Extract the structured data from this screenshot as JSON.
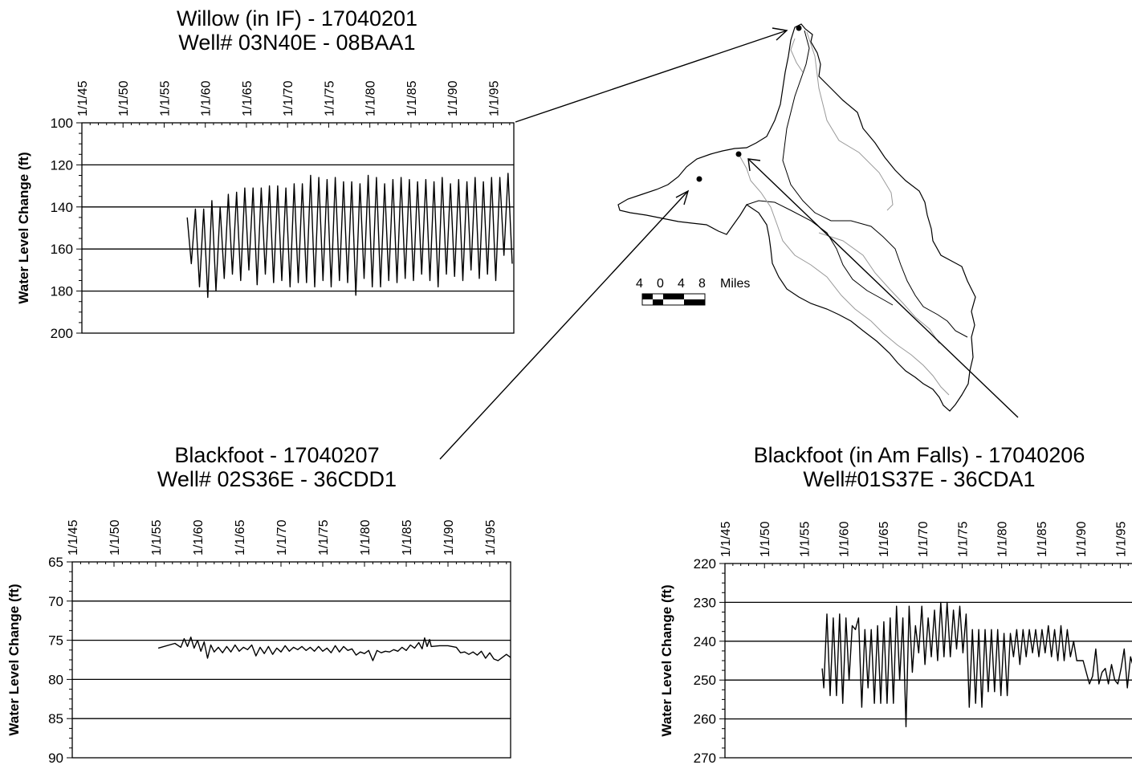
{
  "charts": [
    {
      "title": "Willow (in IF) - 17040201",
      "subtitle": "Well# 03N40E - 08BAA1"
    },
    {
      "title": "Blackfoot - 17040207",
      "subtitle": "Well# 02S36E - 36CDD1"
    },
    {
      "title": "Blackfoot (in Am Falls) - 17040206",
      "subtitle": "Well#01S37E - 36CDA1"
    }
  ],
  "map": {
    "scale_numbers": [
      "4",
      "0",
      "4",
      "8"
    ],
    "scale_units": "Miles"
  },
  "chart_data": [
    {
      "type": "line",
      "title": "Willow (in IF) - 17040201 / Well# 03N40E - 08BAA1",
      "xlabel": "",
      "ylabel": "Water Level Change (ft)",
      "x_tick_labels": [
        "1/1/45",
        "1/1/50",
        "1/1/55",
        "1/1/60",
        "1/1/65",
        "1/1/70",
        "1/1/75",
        "1/1/80",
        "1/1/85",
        "1/1/90",
        "1/1/95"
      ],
      "xlim": [
        1945,
        1997.5
      ],
      "ylim": [
        100,
        200
      ],
      "y_reversed": true,
      "y_ticks": [
        100,
        120,
        140,
        160,
        180,
        200
      ],
      "grid": "horizontal",
      "series": [
        {
          "x": [
            1957.8,
            1958.3,
            1958.8,
            1959.3,
            1959.8,
            1960.3,
            1960.8,
            1961.3,
            1961.8,
            1962.3,
            1962.8,
            1963.3,
            1963.8,
            1964.3,
            1964.8,
            1965.3,
            1965.8,
            1966.3,
            1966.8,
            1967.3,
            1967.8,
            1968.3,
            1968.8,
            1969.3,
            1969.8,
            1970.3,
            1970.8,
            1971.3,
            1971.8,
            1972.3,
            1972.8,
            1973.3,
            1973.8,
            1974.3,
            1974.8,
            1975.3,
            1975.8,
            1976.3,
            1976.8,
            1977.3,
            1977.8,
            1978.3,
            1978.8,
            1979.3,
            1979.8,
            1980.3,
            1980.8,
            1981.3,
            1981.8,
            1982.3,
            1982.8,
            1983.3,
            1983.8,
            1984.3,
            1984.8,
            1985.3,
            1985.8,
            1986.3,
            1986.8,
            1987.3,
            1987.8,
            1988.3,
            1988.8,
            1989.3,
            1989.8,
            1990.3,
            1990.8,
            1991.3,
            1991.8,
            1992.3,
            1992.8,
            1993.3,
            1993.8,
            1994.3,
            1994.8,
            1995.3,
            1995.8,
            1996.3,
            1996.8,
            1997.3
          ],
          "y": [
            145,
            167,
            141,
            178,
            141,
            183,
            137,
            180,
            140,
            174,
            134,
            172,
            133,
            175,
            131,
            170,
            131,
            177,
            131,
            172,
            130,
            176,
            130,
            175,
            131,
            178,
            129,
            176,
            129,
            176,
            125,
            178,
            126,
            175,
            127,
            178,
            126,
            175,
            128,
            176,
            128,
            182,
            129,
            174,
            125,
            178,
            126,
            178,
            129,
            175,
            127,
            176,
            126,
            174,
            127,
            175,
            128,
            172,
            127,
            175,
            128,
            178,
            126,
            172,
            129,
            173,
            127,
            175,
            128,
            170,
            126,
            174,
            128,
            172,
            126,
            175,
            126,
            163,
            124,
            167
          ]
        }
      ]
    },
    {
      "type": "line",
      "title": "Blackfoot - 17040207 / Well# 02S36E - 36CDD1",
      "xlabel": "",
      "ylabel": "Water Level Change (ft)",
      "x_tick_labels": [
        "1/1/45",
        "1/1/50",
        "1/1/55",
        "1/1/60",
        "1/1/65",
        "1/1/70",
        "1/1/75",
        "1/1/80",
        "1/1/85",
        "1/1/90",
        "1/1/95"
      ],
      "xlim": [
        1945,
        1997.5
      ],
      "ylim": [
        65,
        90
      ],
      "y_reversed": true,
      "y_ticks": [
        65,
        70,
        75,
        80,
        85,
        90
      ],
      "grid": "horizontal",
      "series": [
        {
          "x": [
            1955.3,
            1957.3,
            1958.0,
            1958.4,
            1958.8,
            1959.2,
            1959.6,
            1960.0,
            1960.4,
            1960.8,
            1961.2,
            1961.6,
            1962.0,
            1962.5,
            1963.0,
            1963.5,
            1964.0,
            1964.5,
            1965.0,
            1965.5,
            1966.0,
            1966.5,
            1967.0,
            1967.5,
            1968.0,
            1968.5,
            1969.0,
            1969.5,
            1970.0,
            1970.5,
            1971.0,
            1971.5,
            1972.0,
            1972.5,
            1973.0,
            1973.5,
            1974.0,
            1974.5,
            1975.0,
            1975.5,
            1976.0,
            1976.5,
            1977.0,
            1977.5,
            1978.0,
            1978.5,
            1979.0,
            1979.5,
            1980.0,
            1980.5,
            1981.0,
            1981.5,
            1982.0,
            1982.5,
            1983.0,
            1983.5,
            1984.0,
            1984.5,
            1985.0,
            1985.5,
            1986.0,
            1986.5,
            1986.9,
            1987.2,
            1987.5,
            1987.8,
            1988.0,
            1989.0,
            1990.0,
            1991.0,
            1991.5,
            1992.0,
            1992.5,
            1993.0,
            1993.5,
            1994.0,
            1994.5,
            1995.0,
            1995.5,
            1996.0,
            1996.5,
            1997.0,
            1997.5
          ],
          "y": [
            76.0,
            75.4,
            75.9,
            74.8,
            75.8,
            74.6,
            76.0,
            75.0,
            76.4,
            75.2,
            77.3,
            75.6,
            76.5,
            75.9,
            76.6,
            75.8,
            76.5,
            75.6,
            76.4,
            75.9,
            76.2,
            75.6,
            77.0,
            75.9,
            76.7,
            75.8,
            76.8,
            76.0,
            76.5,
            75.7,
            76.4,
            75.9,
            76.2,
            75.8,
            76.3,
            75.9,
            76.4,
            75.8,
            76.4,
            76.0,
            76.6,
            75.7,
            76.5,
            75.8,
            76.3,
            76.1,
            76.9,
            76.5,
            76.7,
            76.3,
            77.6,
            76.3,
            76.6,
            76.4,
            76.5,
            76.2,
            76.4,
            75.9,
            76.3,
            75.6,
            76.0,
            75.3,
            76.1,
            74.7,
            75.8,
            74.9,
            75.8,
            75.7,
            75.7,
            75.9,
            76.6,
            76.5,
            76.8,
            76.5,
            76.9,
            76.4,
            77.3,
            76.6,
            77.4,
            77.6,
            77.2,
            76.8,
            77.2
          ]
        }
      ]
    },
    {
      "type": "line",
      "title": "Blackfoot (in Am Falls) - 17040206 / Well#01S37E - 36CDA1",
      "xlabel": "",
      "ylabel": "Water Level Change (ft)",
      "x_tick_labels": [
        "1/1/45",
        "1/1/50",
        "1/1/55",
        "1/1/60",
        "1/1/65",
        "1/1/70",
        "1/1/75",
        "1/1/80",
        "1/1/85",
        "1/1/90",
        "1/1/95"
      ],
      "xlim": [
        1945,
        1997.5
      ],
      "ylim": [
        220,
        270
      ],
      "y_reversed": true,
      "y_ticks": [
        220,
        230,
        240,
        250,
        260,
        270
      ],
      "grid": "horizontal",
      "series": [
        {
          "x": [
            1957.3,
            1957.5,
            1957.9,
            1958.3,
            1958.7,
            1959.1,
            1959.5,
            1959.9,
            1960.3,
            1960.7,
            1961.1,
            1961.5,
            1961.9,
            1962.3,
            1962.7,
            1963.1,
            1963.5,
            1963.9,
            1964.3,
            1964.7,
            1965.1,
            1965.5,
            1965.9,
            1966.3,
            1966.7,
            1967.1,
            1967.5,
            1967.9,
            1968.3,
            1968.7,
            1969.1,
            1969.5,
            1969.9,
            1970.3,
            1970.7,
            1971.1,
            1971.5,
            1971.9,
            1972.3,
            1972.7,
            1973.1,
            1973.5,
            1973.9,
            1974.3,
            1974.7,
            1975.1,
            1975.5,
            1975.9,
            1976.3,
            1976.7,
            1977.1,
            1977.5,
            1977.9,
            1978.3,
            1978.7,
            1979.1,
            1979.5,
            1979.9,
            1980.3,
            1980.7,
            1981.1,
            1981.5,
            1981.9,
            1982.3,
            1982.7,
            1983.1,
            1983.5,
            1983.9,
            1984.3,
            1984.7,
            1985.1,
            1985.5,
            1985.9,
            1986.3,
            1986.7,
            1987.1,
            1987.5,
            1987.9,
            1988.3,
            1988.7,
            1989.1,
            1989.5,
            1989.9,
            1990.3,
            1990.7,
            1991.1,
            1991.5,
            1991.9,
            1992.3,
            1992.7,
            1993.1,
            1993.5,
            1993.9,
            1994.3,
            1994.7,
            1995.1,
            1995.5,
            1995.9,
            1996.3,
            1996.7,
            1997.1,
            1997.5
          ],
          "y": [
            247,
            252,
            233,
            254,
            234,
            254,
            233,
            256,
            234,
            250,
            236,
            237,
            234,
            257,
            237,
            252,
            237,
            256,
            236,
            256,
            235,
            256,
            234,
            256,
            231,
            250,
            234,
            262,
            231,
            248,
            236,
            243,
            231,
            246,
            234,
            244,
            232,
            245,
            230,
            244,
            230,
            244,
            232,
            242,
            231,
            243,
            233,
            257,
            237,
            256,
            237,
            257,
            237,
            253,
            237,
            253,
            237,
            254,
            238,
            254,
            238,
            244,
            237,
            246,
            237,
            244,
            237,
            243,
            237,
            244,
            237,
            243,
            236,
            244,
            237,
            245,
            236,
            245,
            237,
            244,
            240,
            245,
            245,
            245,
            248,
            251,
            249,
            242,
            251,
            248,
            247,
            251,
            246,
            250,
            251,
            247,
            242,
            252,
            244,
            247,
            242,
            249
          ]
        }
      ]
    }
  ]
}
